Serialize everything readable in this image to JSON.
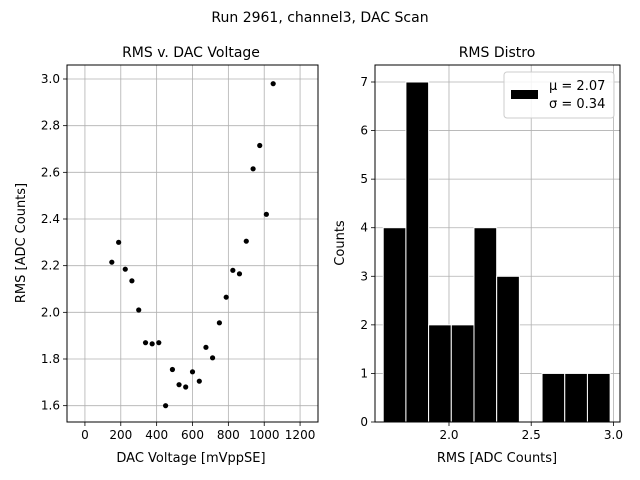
{
  "suptitle": "Run 2961, channel3, DAC Scan",
  "chart_data": [
    {
      "type": "scatter",
      "title": "RMS v. DAC Voltage",
      "xlabel": "DAC Voltage [mVppSE]",
      "ylabel": "RMS [ADC Counts]",
      "xlim": [
        -100,
        1300
      ],
      "ylim": [
        1.53,
        3.06
      ],
      "xticks": [
        0,
        200,
        400,
        600,
        800,
        1000,
        1200
      ],
      "yticks": [
        1.6,
        1.8,
        2.0,
        2.2,
        2.4,
        2.6,
        2.8,
        3.0
      ],
      "xtick_labels": [
        "0",
        "200",
        "400",
        "600",
        "800",
        "1000",
        "1200"
      ],
      "ytick_labels": [
        "1.6",
        "1.8",
        "2.0",
        "2.2",
        "2.4",
        "2.6",
        "2.8",
        "3.0"
      ],
      "grid": true,
      "marker_color": "#000000",
      "points": [
        {
          "x": 150,
          "y": 2.215
        },
        {
          "x": 188,
          "y": 2.3
        },
        {
          "x": 225,
          "y": 2.185
        },
        {
          "x": 262,
          "y": 2.135
        },
        {
          "x": 300,
          "y": 2.01
        },
        {
          "x": 338,
          "y": 1.87
        },
        {
          "x": 375,
          "y": 1.865
        },
        {
          "x": 412,
          "y": 1.87
        },
        {
          "x": 450,
          "y": 1.6
        },
        {
          "x": 488,
          "y": 1.755
        },
        {
          "x": 525,
          "y": 1.69
        },
        {
          "x": 562,
          "y": 1.68
        },
        {
          "x": 600,
          "y": 1.745
        },
        {
          "x": 638,
          "y": 1.705
        },
        {
          "x": 675,
          "y": 1.85
        },
        {
          "x": 712,
          "y": 1.805
        },
        {
          "x": 750,
          "y": 1.955
        },
        {
          "x": 788,
          "y": 2.065
        },
        {
          "x": 825,
          "y": 2.18
        },
        {
          "x": 862,
          "y": 2.165
        },
        {
          "x": 900,
          "y": 2.305
        },
        {
          "x": 938,
          "y": 2.615
        },
        {
          "x": 975,
          "y": 2.715
        },
        {
          "x": 1012,
          "y": 2.42
        },
        {
          "x": 1050,
          "y": 2.98
        }
      ]
    },
    {
      "type": "bar",
      "subtype": "histogram",
      "title": "RMS Distro",
      "xlabel": "RMS [ADC Counts]",
      "ylabel": "Counts",
      "xlim": [
        1.55,
        3.04
      ],
      "ylim": [
        0,
        7.35
      ],
      "xticks": [
        2.0,
        2.5,
        3.0
      ],
      "yticks": [
        0,
        1,
        2,
        3,
        4,
        5,
        6,
        7
      ],
      "xtick_labels": [
        "2.0",
        "2.5",
        "3.0"
      ],
      "ytick_labels": [
        "0",
        "1",
        "2",
        "3",
        "4",
        "5",
        "6",
        "7"
      ],
      "grid": true,
      "bar_color": "#000000",
      "edge_color": "#ffffff",
      "bin_edges": [
        1.6,
        1.738,
        1.876,
        2.014,
        2.152,
        2.29,
        2.428,
        2.566,
        2.704,
        2.842,
        2.98
      ],
      "counts": [
        4,
        7,
        2,
        2,
        4,
        3,
        0,
        1,
        1,
        1
      ],
      "legend": {
        "position": "top-right",
        "mu": "2.07",
        "sigma": "0.34",
        "label_mu": "μ = 2.07",
        "label_sigma": "σ = 0.34"
      }
    }
  ]
}
